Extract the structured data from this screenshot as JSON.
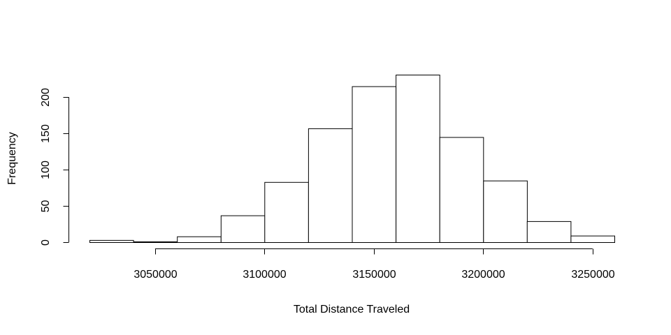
{
  "chart_data": {
    "type": "bar",
    "xlabel": "Total Distance Traveled",
    "ylabel": "Frequency",
    "bin_edges": [
      3020000,
      3040000,
      3060000,
      3080000,
      3100000,
      3120000,
      3140000,
      3160000,
      3180000,
      3200000,
      3220000,
      3240000,
      3260000
    ],
    "values": [
      3,
      1,
      8,
      37,
      83,
      157,
      215,
      231,
      145,
      85,
      29,
      9
    ],
    "xlim": [
      3020000,
      3260000
    ],
    "ylim": [
      0,
      231
    ],
    "x_ticks": [
      3050000,
      3100000,
      3150000,
      3200000,
      3250000
    ],
    "x_tick_labels": [
      "3050000",
      "3100000",
      "3150000",
      "3200000",
      "3250000"
    ],
    "y_ticks": [
      0,
      50,
      100,
      150,
      200
    ],
    "y_tick_labels": [
      "0",
      "50",
      "100",
      "150",
      "200"
    ],
    "grid": false,
    "legend": "none"
  }
}
